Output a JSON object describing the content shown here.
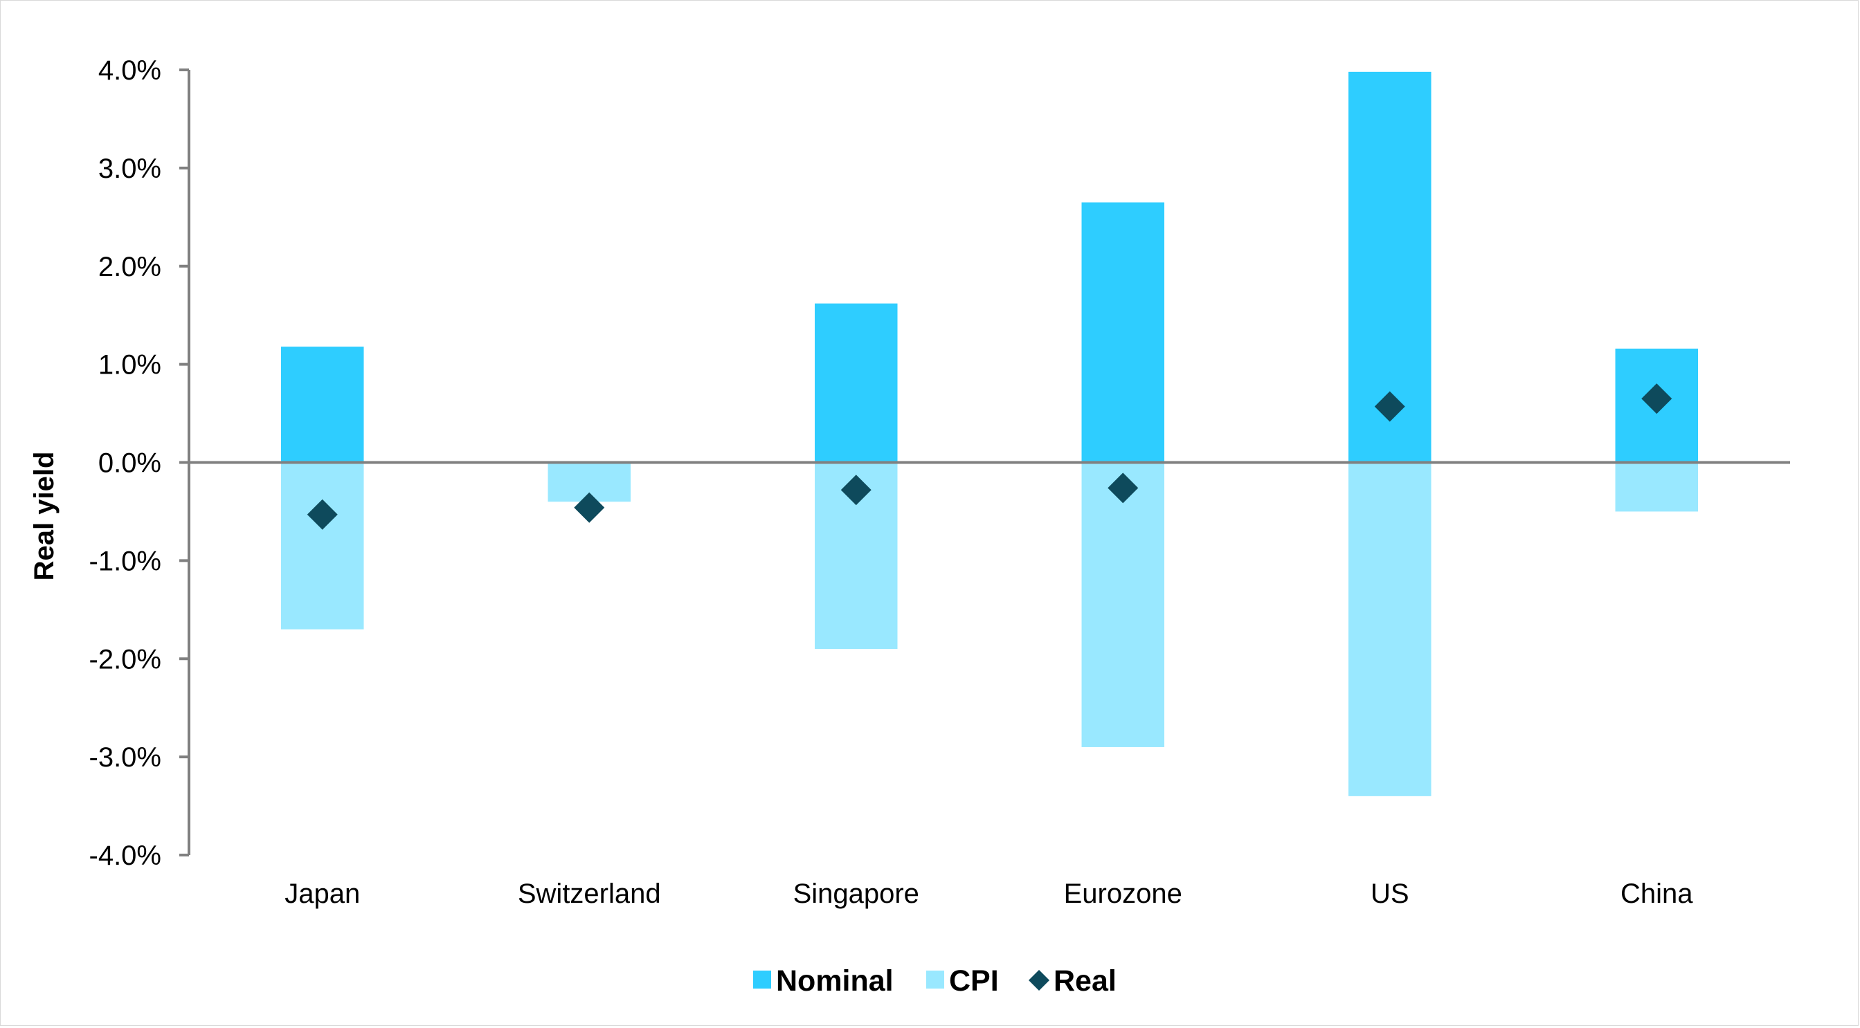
{
  "chart_data": {
    "type": "bar",
    "stacked": true,
    "categories": [
      "Japan",
      "Switzerland",
      "Singapore",
      "Eurozone",
      "US",
      "China"
    ],
    "series": [
      {
        "name": "Nominal",
        "kind": "bar",
        "color": "#2ECDFF",
        "values": [
          1.18,
          -0.06,
          1.62,
          2.65,
          3.98,
          1.16
        ]
      },
      {
        "name": "CPI",
        "kind": "bar",
        "color": "#99E8FF",
        "values": [
          -1.7,
          -0.4,
          -1.9,
          -2.9,
          -3.4,
          -0.5
        ]
      },
      {
        "name": "Real",
        "kind": "marker",
        "marker": "diamond",
        "color": "#0E4A5C",
        "values": [
          -0.53,
          -0.46,
          -0.28,
          -0.26,
          0.57,
          0.65
        ]
      }
    ],
    "ylabel": "Real yield",
    "ylim": [
      -4.0,
      4.0
    ],
    "yticks": [
      "4.0%",
      "3.0%",
      "2.0%",
      "1.0%",
      "0.0%",
      "-1.0%",
      "-2.0%",
      "-3.0%",
      "-4.0%"
    ],
    "ytick_values": [
      4,
      3,
      2,
      1,
      0,
      -1,
      -2,
      -3,
      -4
    ],
    "grid": false,
    "legend_position": "bottom"
  }
}
